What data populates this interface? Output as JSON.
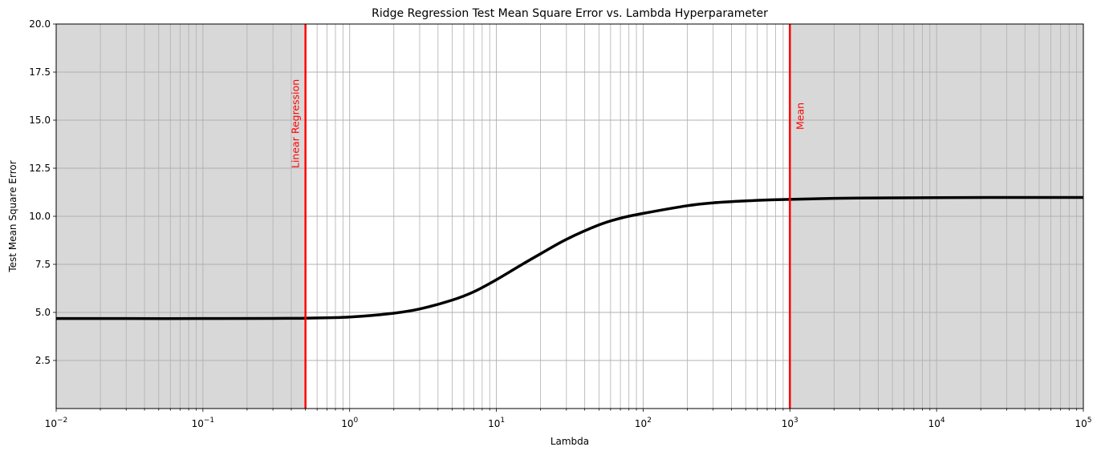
{
  "chart_data": {
    "type": "line",
    "title": "Ridge Regression Test Mean Square Error vs. Lambda Hyperparameter",
    "xlabel": "Lambda",
    "ylabel": "Test Mean Square Error",
    "xscale": "log",
    "xlim": [
      0.01,
      100000
    ],
    "ylim": [
      0,
      20
    ],
    "grid": true,
    "x_ticks": [
      {
        "value": 0.01,
        "base": "10",
        "exp": "−2"
      },
      {
        "value": 0.1,
        "base": "10",
        "exp": "−1"
      },
      {
        "value": 1,
        "base": "10",
        "exp": "0"
      },
      {
        "value": 10,
        "base": "10",
        "exp": "1"
      },
      {
        "value": 100,
        "base": "10",
        "exp": "2"
      },
      {
        "value": 1000,
        "base": "10",
        "exp": "3"
      },
      {
        "value": 10000,
        "base": "10",
        "exp": "4"
      },
      {
        "value": 100000,
        "base": "10",
        "exp": "5"
      }
    ],
    "y_ticks": [
      {
        "value": 2.5,
        "label": "2.5"
      },
      {
        "value": 5,
        "label": "5.0"
      },
      {
        "value": 7.5,
        "label": "7.5"
      },
      {
        "value": 10,
        "label": "10.0"
      },
      {
        "value": 12.5,
        "label": "12.5"
      },
      {
        "value": 15,
        "label": "15.0"
      },
      {
        "value": 17.5,
        "label": "17.5"
      },
      {
        "value": 20,
        "label": "20.0"
      }
    ],
    "series": [
      {
        "color": "#000000",
        "x": [
          0.01,
          0.03,
          0.1,
          0.3,
          0.5,
          1,
          2,
          3,
          5,
          7,
          10,
          15,
          20,
          30,
          50,
          70,
          100,
          200,
          300,
          500,
          700,
          1000,
          2000,
          3000,
          5000,
          10000,
          30000,
          100000
        ],
        "y": [
          4.68,
          4.68,
          4.68,
          4.69,
          4.7,
          4.76,
          4.96,
          5.18,
          5.64,
          6.07,
          6.7,
          7.5,
          8.05,
          8.8,
          9.55,
          9.9,
          10.15,
          10.55,
          10.7,
          10.8,
          10.85,
          10.88,
          10.93,
          10.95,
          10.96,
          10.97,
          10.98,
          10.98
        ]
      }
    ],
    "shaded_regions": [
      {
        "x_from": 0.01,
        "x_to": 0.5,
        "color": "#d8d8d8"
      },
      {
        "x_from": 1000,
        "x_to": 100000,
        "color": "#d8d8d8"
      }
    ],
    "vlines": [
      {
        "x": 0.5,
        "label": "Linear Regression",
        "label_y": 12.5,
        "label_side": "left",
        "color": "#ff0000"
      },
      {
        "x": 1000,
        "label": "Mean",
        "label_y": 14.5,
        "label_side": "right",
        "color": "#ff0000"
      }
    ]
  }
}
